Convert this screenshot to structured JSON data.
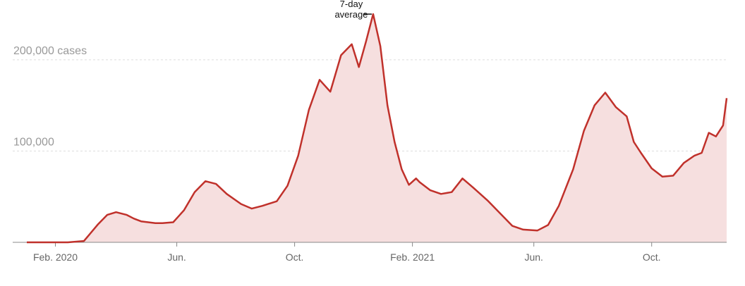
{
  "chart_data": {
    "type": "area",
    "title": "",
    "xlabel": "",
    "ylabel": "",
    "ylim": [
      0,
      240000
    ],
    "xlim": [
      2020.0,
      2021.96
    ],
    "series": [
      {
        "name": "7-day average",
        "x": [
          2020.0,
          2020.115,
          2020.16,
          2020.2,
          2020.225,
          2020.25,
          2020.28,
          2020.3,
          2020.32,
          2020.36,
          2020.38,
          2020.41,
          2020.44,
          2020.47,
          2020.5,
          2020.53,
          2020.56,
          2020.6,
          2020.63,
          2020.66,
          2020.7,
          2020.73,
          2020.76,
          2020.79,
          2020.82,
          2020.85,
          2020.88,
          2020.91,
          2020.93,
          2020.95,
          2020.97,
          2020.99,
          2021.01,
          2021.03,
          2021.05,
          2021.07,
          2021.09,
          2021.1,
          2021.13,
          2021.16,
          2021.19,
          2021.22,
          2021.25,
          2021.29,
          2021.33,
          2021.36,
          2021.39,
          2021.43,
          2021.46,
          2021.49,
          2021.53,
          2021.56,
          2021.59,
          2021.62,
          2021.65,
          2021.68,
          2021.7,
          2021.72,
          2021.75,
          2021.78,
          2021.81,
          2021.84,
          2021.87,
          2021.89,
          2021.91,
          2021.93,
          2021.95,
          2021.96
        ],
        "values": [
          0,
          0,
          1500,
          20000,
          30000,
          33000,
          30000,
          26000,
          23000,
          21000,
          21000,
          22000,
          35000,
          55000,
          67000,
          64000,
          53000,
          42000,
          37000,
          40000,
          45000,
          62000,
          95000,
          145000,
          178000,
          165000,
          205000,
          217000,
          192000,
          220000,
          250000,
          215000,
          150000,
          110000,
          80000,
          63000,
          70000,
          66000,
          57000,
          53000,
          55000,
          70000,
          60000,
          46000,
          30000,
          18000,
          14000,
          13000,
          19000,
          40000,
          80000,
          122000,
          150000,
          164000,
          148000,
          138000,
          110000,
          98000,
          81000,
          72000,
          73000,
          87000,
          95000,
          98000,
          120000,
          116000,
          128000,
          158000
        ]
      }
    ],
    "y_ticks": [
      {
        "value": 0,
        "label": ""
      },
      {
        "value": 100000,
        "label": "100,000"
      },
      {
        "value": 200000,
        "label": "200,000 cases"
      }
    ],
    "x_ticks": [
      {
        "value": 2020.08,
        "label": "Feb. 2020"
      },
      {
        "value": 2020.42,
        "label": "Jun."
      },
      {
        "value": 2020.75,
        "label": "Oct."
      },
      {
        "value": 2021.08,
        "label": "Feb. 2021"
      },
      {
        "value": 2021.42,
        "label": "Jun."
      },
      {
        "value": 2021.75,
        "label": "Oct."
      }
    ],
    "annotation": {
      "lines": [
        "7-day",
        "average"
      ],
      "x": 2020.97,
      "y": 250000
    },
    "colors": {
      "line": "#c0312b",
      "fill": "#f6dfdf",
      "grid": "#dddddd",
      "baseline": "#888888"
    },
    "grid": true,
    "legend": "none"
  }
}
